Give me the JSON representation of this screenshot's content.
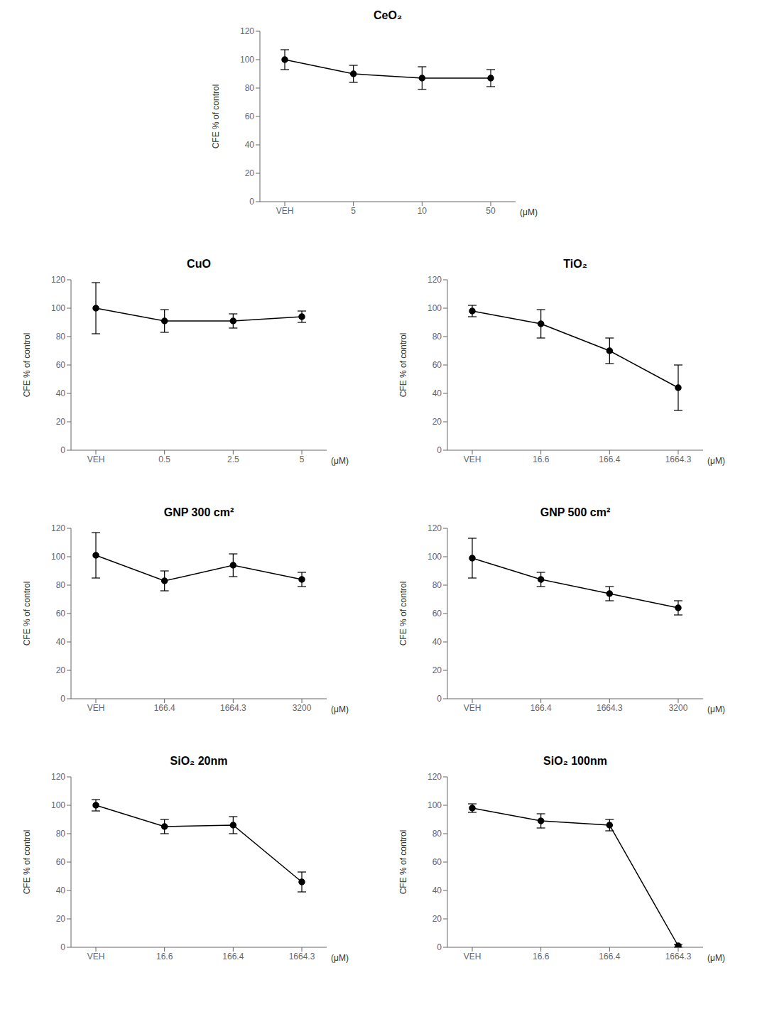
{
  "chart_data": [
    {
      "type": "line",
      "title": "CeO₂",
      "ylabel": "CFE % of control",
      "annotations": [
        "(μM)"
      ],
      "categories": [
        "VEH",
        "5",
        "10",
        "50"
      ],
      "values": [
        100,
        90,
        87,
        87
      ],
      "errors": [
        7,
        6,
        8,
        6
      ],
      "ylim": [
        0,
        120
      ],
      "yticks": [
        0,
        20,
        40,
        60,
        80,
        100,
        120
      ],
      "color": "black",
      "marker": "o",
      "grid": false
    },
    {
      "type": "line",
      "title": "CuO",
      "ylabel": "CFE % of control",
      "annotations": [
        "(μM)"
      ],
      "categories": [
        "VEH",
        "0.5",
        "2.5",
        "5"
      ],
      "values": [
        100,
        91,
        91,
        94
      ],
      "errors": [
        18,
        8,
        5,
        4
      ],
      "ylim": [
        0,
        120
      ],
      "yticks": [
        0,
        20,
        40,
        60,
        80,
        100,
        120
      ],
      "color": "black",
      "marker": "o",
      "grid": false
    },
    {
      "type": "line",
      "title": "TiO₂",
      "ylabel": "CFE % of control",
      "annotations": [
        "(μM)"
      ],
      "categories": [
        "VEH",
        "16.6",
        "166.4",
        "1664.3"
      ],
      "values": [
        98,
        89,
        70,
        44
      ],
      "errors": [
        4,
        10,
        9,
        16
      ],
      "ylim": [
        0,
        120
      ],
      "yticks": [
        0,
        20,
        40,
        60,
        80,
        100,
        120
      ],
      "color": "black",
      "marker": "o",
      "grid": false
    },
    {
      "type": "line",
      "title": "GNP 300 cm²",
      "ylabel": "CFE % of control",
      "annotations": [
        "(μM)"
      ],
      "categories": [
        "VEH",
        "166.4",
        "1664.3",
        "3200"
      ],
      "values": [
        101,
        83,
        94,
        84
      ],
      "errors": [
        16,
        7,
        8,
        5
      ],
      "ylim": [
        0,
        120
      ],
      "yticks": [
        0,
        20,
        40,
        60,
        80,
        100,
        120
      ],
      "color": "black",
      "marker": "o",
      "grid": false
    },
    {
      "type": "line",
      "title": "GNP 500 cm²",
      "ylabel": "CFE % of control",
      "annotations": [
        "(μM)"
      ],
      "categories": [
        "VEH",
        "166.4",
        "1664.3",
        "3200"
      ],
      "values": [
        99,
        84,
        74,
        64
      ],
      "errors": [
        14,
        5,
        5,
        5
      ],
      "ylim": [
        0,
        120
      ],
      "yticks": [
        0,
        20,
        40,
        60,
        80,
        100,
        120
      ],
      "color": "black",
      "marker": "o",
      "grid": false
    },
    {
      "type": "line",
      "title": "SiO₂ 20nm",
      "ylabel": "CFE % of control",
      "annotations": [
        "(μM)"
      ],
      "categories": [
        "VEH",
        "16.6",
        "166.4",
        "1664.3"
      ],
      "values": [
        100,
        85,
        86,
        46
      ],
      "errors": [
        4,
        5,
        6,
        7
      ],
      "ylim": [
        0,
        120
      ],
      "yticks": [
        0,
        20,
        40,
        60,
        80,
        100,
        120
      ],
      "color": "black",
      "marker": "o",
      "grid": false
    },
    {
      "type": "line",
      "title": "SiO₂ 100nm",
      "ylabel": "CFE % of control",
      "annotations": [
        "(μM)"
      ],
      "categories": [
        "VEH",
        "16.6",
        "166.4",
        "1664.3"
      ],
      "values": [
        98,
        89,
        86,
        1
      ],
      "errors": [
        3,
        5,
        4,
        1
      ],
      "ylim": [
        0,
        120
      ],
      "yticks": [
        0,
        20,
        40,
        60,
        80,
        100,
        120
      ],
      "color": "black",
      "marker": "o",
      "grid": false
    }
  ]
}
